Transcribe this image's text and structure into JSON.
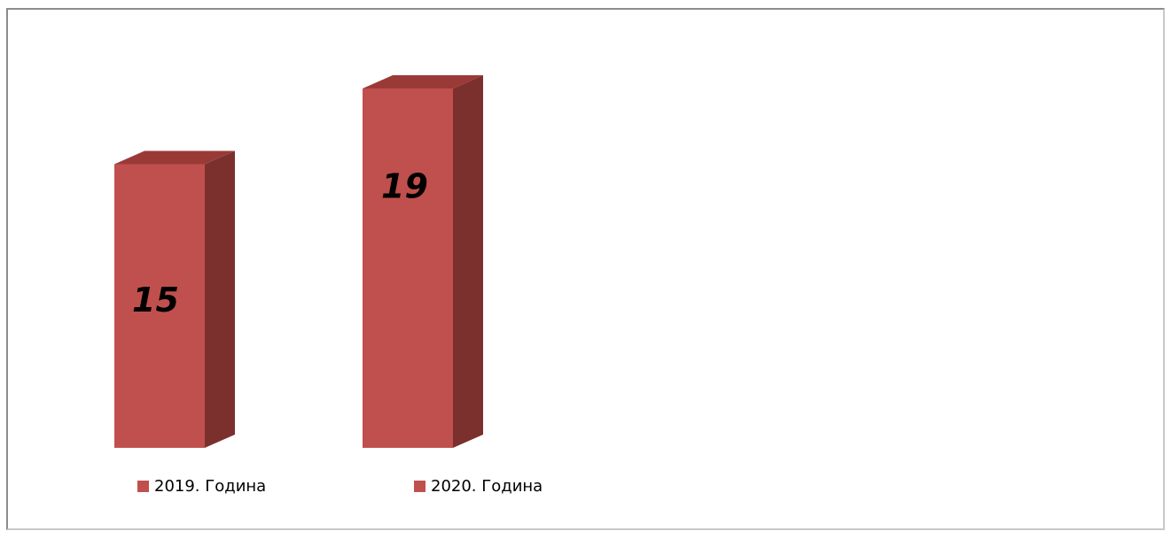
{
  "chart_data": {
    "type": "bar",
    "categories": [
      "2019. Година",
      "2020. Година"
    ],
    "values": [
      15,
      19
    ],
    "data_labels": [
      "15",
      "19"
    ],
    "style": "3d-column",
    "legend_position": "bottom",
    "grid": false,
    "ylim": [
      0,
      20
    ],
    "colors": {
      "front": "#c0504d",
      "side": "#7b302e",
      "top": "#9a3a37"
    }
  }
}
